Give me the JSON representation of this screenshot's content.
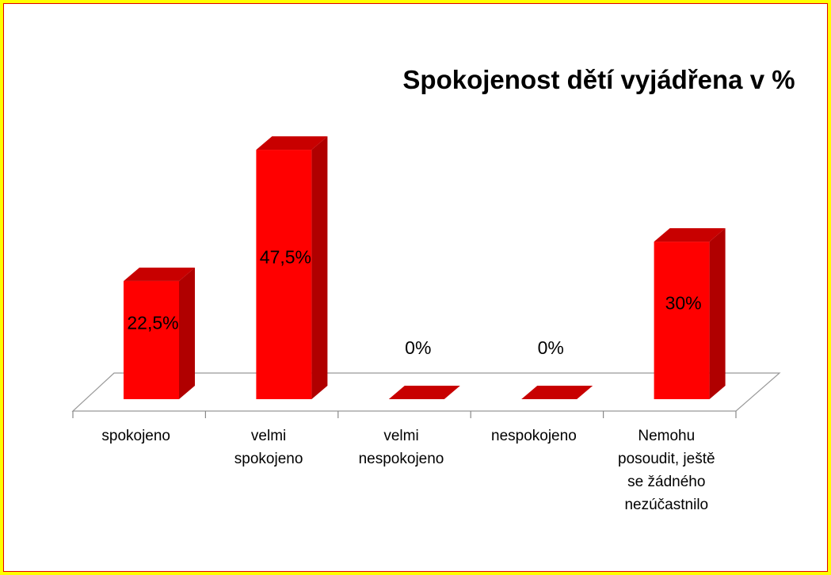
{
  "chart_data": {
    "type": "bar3d",
    "title": "Spokojenost dětí vyjádřena v %",
    "categories": [
      "spokojeno",
      "velmi spokojeno",
      "velmi nespokojeno",
      "nespokojeno",
      "Nemohu posoudit, ještě se žádného nezúčastnilo"
    ],
    "values": [
      22.5,
      47.5,
      0,
      0,
      30
    ],
    "value_labels": [
      "22,5%",
      "47,5%",
      "0%",
      "0%",
      "30%"
    ],
    "color": "#ff0000"
  }
}
